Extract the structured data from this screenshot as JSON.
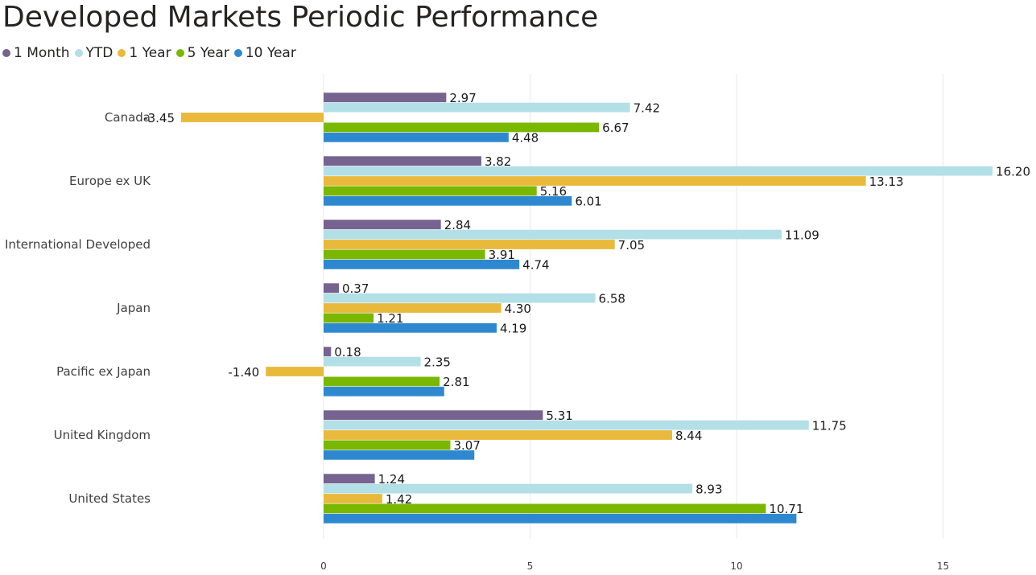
{
  "title": "Developed Markets Periodic Performance",
  "chart_data": {
    "type": "bar",
    "orientation": "horizontal",
    "title": "Developed Markets Periodic Performance",
    "xlabel": "",
    "ylabel": "",
    "categories": [
      "Canada",
      "Europe ex UK",
      "International Developed",
      "Japan",
      "Pacific ex Japan",
      "United Kingdom",
      "United States"
    ],
    "series": [
      {
        "name": "1 Month",
        "color": "#76638F",
        "values": [
          2.97,
          3.82,
          2.84,
          0.37,
          0.18,
          5.31,
          1.24
        ]
      },
      {
        "name": "YTD",
        "color": "#B3DFE7",
        "values": [
          7.42,
          16.2,
          11.09,
          6.58,
          2.35,
          11.75,
          8.93
        ]
      },
      {
        "name": "1 Year",
        "color": "#E9B93B",
        "values": [
          -3.45,
          13.13,
          7.05,
          4.3,
          -1.4,
          8.44,
          1.42
        ]
      },
      {
        "name": "5 Year",
        "color": "#7AB800",
        "values": [
          6.67,
          5.16,
          3.91,
          1.21,
          2.81,
          3.07,
          10.71
        ]
      },
      {
        "name": "10 Year",
        "color": "#2E88D0",
        "values": [
          4.48,
          6.01,
          4.74,
          4.19,
          2.92,
          3.65,
          11.45
        ]
      }
    ],
    "data_labels": [
      [
        "2.97",
        "3.82",
        "2.84",
        "0.37",
        "0.18",
        "5.31",
        "1.24"
      ],
      [
        "7.42",
        "16.20",
        "11.09",
        "6.58",
        "2.35",
        "11.75",
        "8.93"
      ],
      [
        "-3.45",
        "13.13",
        "7.05",
        "4.30",
        "-1.40",
        "8.44",
        "1.42"
      ],
      [
        "6.67",
        "5.16",
        "3.91",
        "1.21",
        "2.81",
        "3.07",
        "10.71"
      ],
      [
        "4.48",
        "6.01",
        "4.74",
        "4.19",
        "",
        "",
        ""
      ]
    ],
    "xlim": [
      -3.45,
      16.2
    ],
    "xticks": [
      0,
      5,
      10,
      15
    ],
    "grid": true,
    "legend_position": "top-left"
  }
}
